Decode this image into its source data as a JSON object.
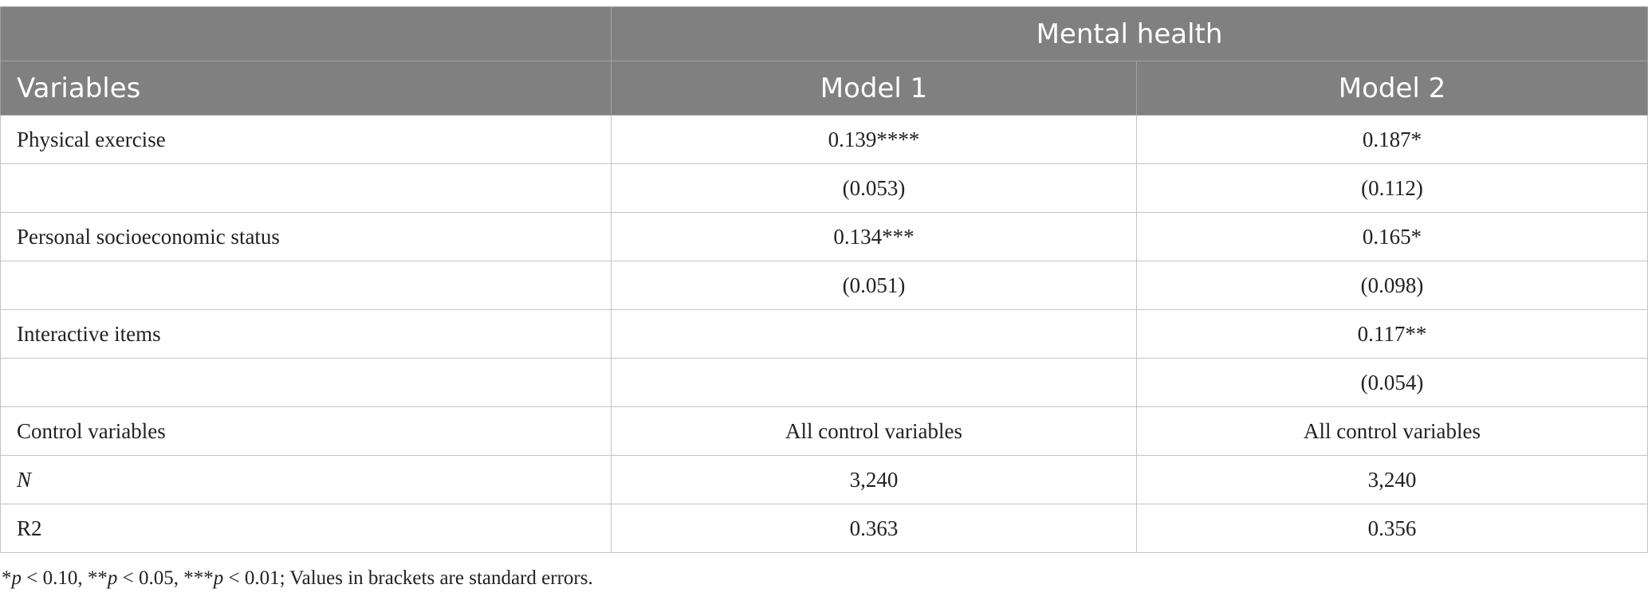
{
  "table": {
    "group_header": "Mental health",
    "columns": [
      "Variables",
      "Model 1",
      "Model 2"
    ],
    "rows": [
      {
        "label": "Physical exercise",
        "model1": "0.139****",
        "model2": "0.187*"
      },
      {
        "label": "",
        "model1": "(0.053)",
        "model2": "(0.112)"
      },
      {
        "label": "Personal socioeconomic status",
        "model1": "0.134***",
        "model2": "0.165*"
      },
      {
        "label": "",
        "model1": "(0.051)",
        "model2": "(0.098)"
      },
      {
        "label": "Interactive items",
        "model1": "",
        "model2": "0.117**"
      },
      {
        "label": "",
        "model1": "",
        "model2": "(0.054)"
      },
      {
        "label": "Control variables",
        "model1": "All control variables",
        "model2": "All control variables"
      },
      {
        "label": "N",
        "model1": "3,240",
        "model2": "3,240"
      },
      {
        "label": "R2",
        "model1": "0.363",
        "model2": "0.356"
      }
    ]
  },
  "footnote": {
    "p1_stars": "*",
    "p1_p": "p",
    "p1_rest": " < 0.10, ",
    "p2_stars": "**",
    "p2_p": "p",
    "p2_rest": " < 0.05, ",
    "p3_stars": "***",
    "p3_p": "p",
    "p3_rest": " < 0.01; Values in brackets are standard errors."
  }
}
